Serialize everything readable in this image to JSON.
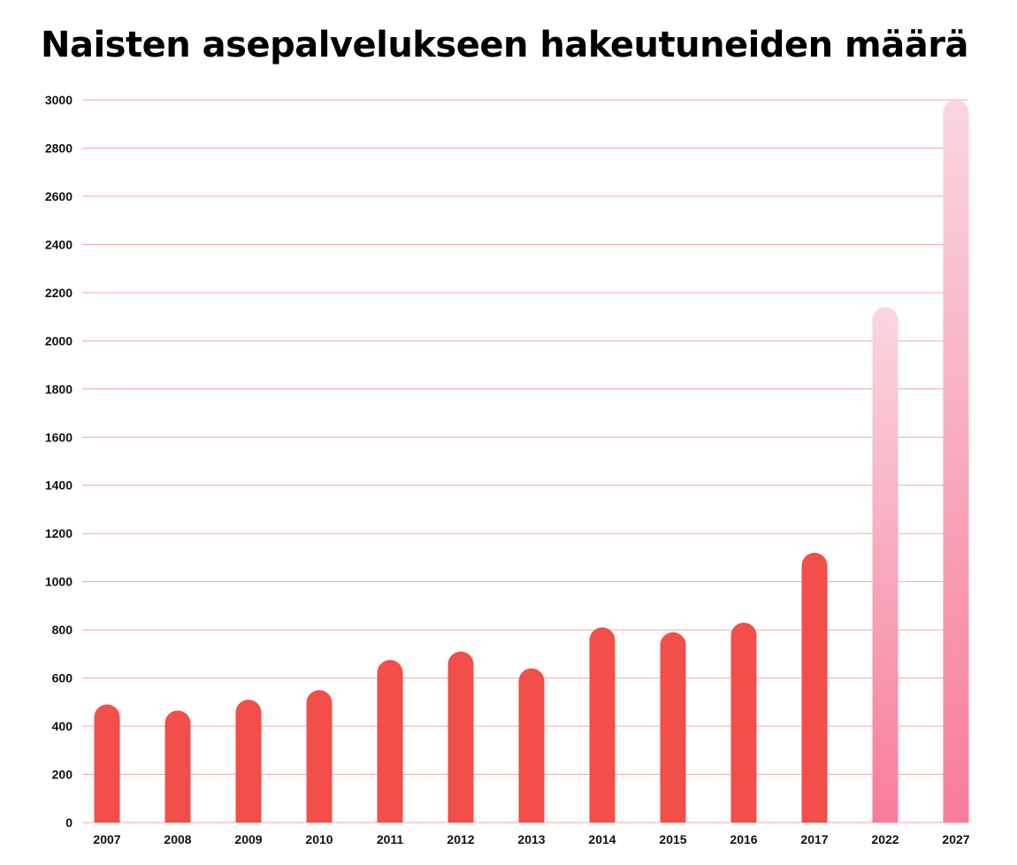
{
  "title": "Naisten asepalvelukseen hakeutuneiden määrä",
  "colors": {
    "bar": "#f24e4a",
    "forecast_label": "#e8477a",
    "forecast_bottom": "#f77c9b",
    "forecast_top": "#fad6e0",
    "grid": "#f2aaa8",
    "axis_text": "#111111"
  },
  "chart_data": {
    "type": "bar",
    "title": "Naisten asepalvelukseen hakeutuneiden määrä",
    "xlabel": "",
    "ylabel": "",
    "categories": [
      "2007",
      "2008",
      "2009",
      "2010",
      "2011",
      "2012",
      "2013",
      "2014",
      "2015",
      "2016",
      "2017",
      "2022",
      "2027"
    ],
    "values": [
      490,
      465,
      510,
      550,
      675,
      710,
      640,
      810,
      790,
      830,
      1120,
      2140,
      3000
    ],
    "forecast": [
      false,
      false,
      false,
      false,
      false,
      false,
      false,
      false,
      false,
      false,
      false,
      true,
      true
    ],
    "ylim": [
      0,
      3000
    ],
    "yticks": [
      0,
      200,
      400,
      600,
      800,
      1000,
      1200,
      1400,
      1600,
      1800,
      2000,
      2200,
      2400,
      2600,
      2800,
      3000
    ],
    "grid": true,
    "legend": "none"
  }
}
